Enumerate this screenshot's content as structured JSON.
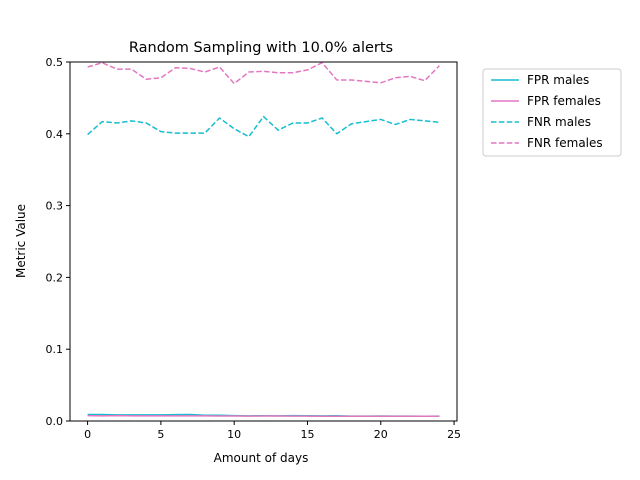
{
  "chart_data": {
    "type": "line",
    "title": "Random Sampling with 10.0% alerts",
    "xlabel": "Amount of days",
    "ylabel": "Metric Value",
    "xlim": [
      -1.2,
      25.2
    ],
    "ylim": [
      0,
      0.5
    ],
    "xticks": [
      0,
      5,
      10,
      15,
      20,
      25
    ],
    "yticks": [
      0.0,
      0.1,
      0.2,
      0.3,
      0.4,
      0.5
    ],
    "xtick_labels": [
      "0",
      "5",
      "10",
      "15",
      "20",
      "25"
    ],
    "ytick_labels": [
      "0.0",
      "0.1",
      "0.2",
      "0.3",
      "0.4",
      "0.5"
    ],
    "grid": false,
    "legend_position": "outside-top-right",
    "x": [
      0,
      1,
      2,
      3,
      4,
      5,
      6,
      7,
      8,
      9,
      10,
      11,
      12,
      13,
      14,
      15,
      16,
      17,
      18,
      19,
      20,
      21,
      22,
      23,
      24
    ],
    "series": [
      {
        "name": "FPR males",
        "color": "#17becf",
        "style": "solid",
        "values": [
          0.009,
          0.009,
          0.0085,
          0.0085,
          0.0085,
          0.0085,
          0.0088,
          0.009,
          0.008,
          0.008,
          0.0075,
          0.0072,
          0.0073,
          0.0072,
          0.0075,
          0.0073,
          0.0072,
          0.0073,
          0.0068,
          0.0068,
          0.007,
          0.0068,
          0.0068,
          0.0066,
          0.0068
        ]
      },
      {
        "name": "FPR females",
        "color": "#e377c2",
        "style": "solid",
        "values": [
          0.0075,
          0.0072,
          0.0075,
          0.0072,
          0.0072,
          0.0072,
          0.0072,
          0.0072,
          0.0072,
          0.007,
          0.007,
          0.0068,
          0.007,
          0.007,
          0.0068,
          0.0068,
          0.0066,
          0.0066,
          0.0066,
          0.0066,
          0.0066,
          0.0066,
          0.0066,
          0.0066,
          0.0066
        ]
      },
      {
        "name": "FNR males",
        "color": "#17becf",
        "style": "dashed",
        "values": [
          0.399,
          0.417,
          0.415,
          0.418,
          0.415,
          0.403,
          0.401,
          0.401,
          0.401,
          0.422,
          0.407,
          0.396,
          0.424,
          0.405,
          0.415,
          0.415,
          0.422,
          0.4,
          0.414,
          0.417,
          0.42,
          0.413,
          0.42,
          0.418,
          0.416
        ]
      },
      {
        "name": "FNR females",
        "color": "#e377c2",
        "style": "dashed",
        "values": [
          0.493,
          0.499,
          0.49,
          0.49,
          0.476,
          0.478,
          0.492,
          0.491,
          0.486,
          0.493,
          0.47,
          0.486,
          0.487,
          0.485,
          0.485,
          0.489,
          0.499,
          0.475,
          0.475,
          0.473,
          0.471,
          0.478,
          0.48,
          0.474,
          0.495
        ]
      }
    ]
  }
}
